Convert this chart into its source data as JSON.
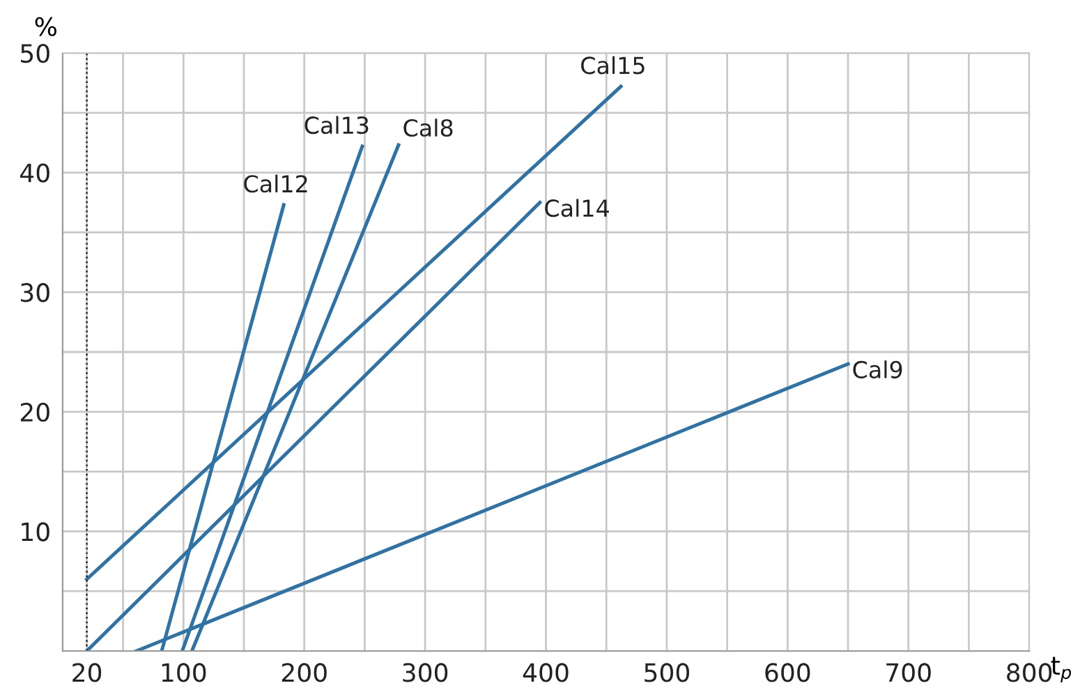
{
  "chart_data": {
    "type": "line",
    "ylabel": "%",
    "xlabel": "t$_{p}$",
    "series": [
      {
        "name": "Cal15",
        "color": "#2e72a6",
        "x": [
          20,
          462
        ],
        "values": [
          6,
          47.2
        ]
      },
      {
        "name": "Cal14",
        "color": "#2e72a6",
        "x": [
          20,
          395
        ],
        "values": [
          0,
          37.5
        ]
      },
      {
        "name": "Cal12",
        "color": "#2e72a6",
        "x": [
          82,
          183
        ],
        "values": [
          0,
          37.3
        ]
      },
      {
        "name": "Cal13",
        "color": "#2e72a6",
        "x": [
          99,
          248
        ],
        "values": [
          0,
          42.2
        ]
      },
      {
        "name": "Cal8",
        "color": "#2e72a6",
        "x": [
          107,
          278
        ],
        "values": [
          0,
          42.3
        ]
      },
      {
        "name": "Cal9",
        "color": "#2e72a6",
        "x": [
          61,
          650
        ],
        "values": [
          0,
          24
        ]
      }
    ],
    "xlim": [
      0,
      800
    ],
    "ylim": [
      0,
      50
    ],
    "xticks": [
      20,
      {
        "value": 50,
        "label": null
      },
      100,
      {
        "value": 150,
        "label": null
      },
      200,
      {
        "value": 250,
        "label": null
      },
      300,
      {
        "value": 350,
        "label": null
      },
      400,
      {
        "value": 450,
        "label": null
      },
      500,
      {
        "value": 550,
        "label": null
      },
      600,
      {
        "value": 650,
        "label": null
      },
      700,
      {
        "value": 750,
        "label": null
      },
      800
    ],
    "yticks": [
      {
        "value": 5,
        "label": null
      },
      10,
      {
        "value": 15,
        "label": null
      },
      20,
      {
        "value": 25,
        "label": null
      },
      30,
      {
        "value": 35,
        "label": null
      },
      40,
      {
        "value": 45,
        "label": null
      },
      50
    ],
    "ref_lines": [
      {
        "axis": "x",
        "value": 20,
        "color": "#222222",
        "line_style": "dotted"
      }
    ],
    "grid": true,
    "line_style": "solid",
    "marker": "none"
  }
}
